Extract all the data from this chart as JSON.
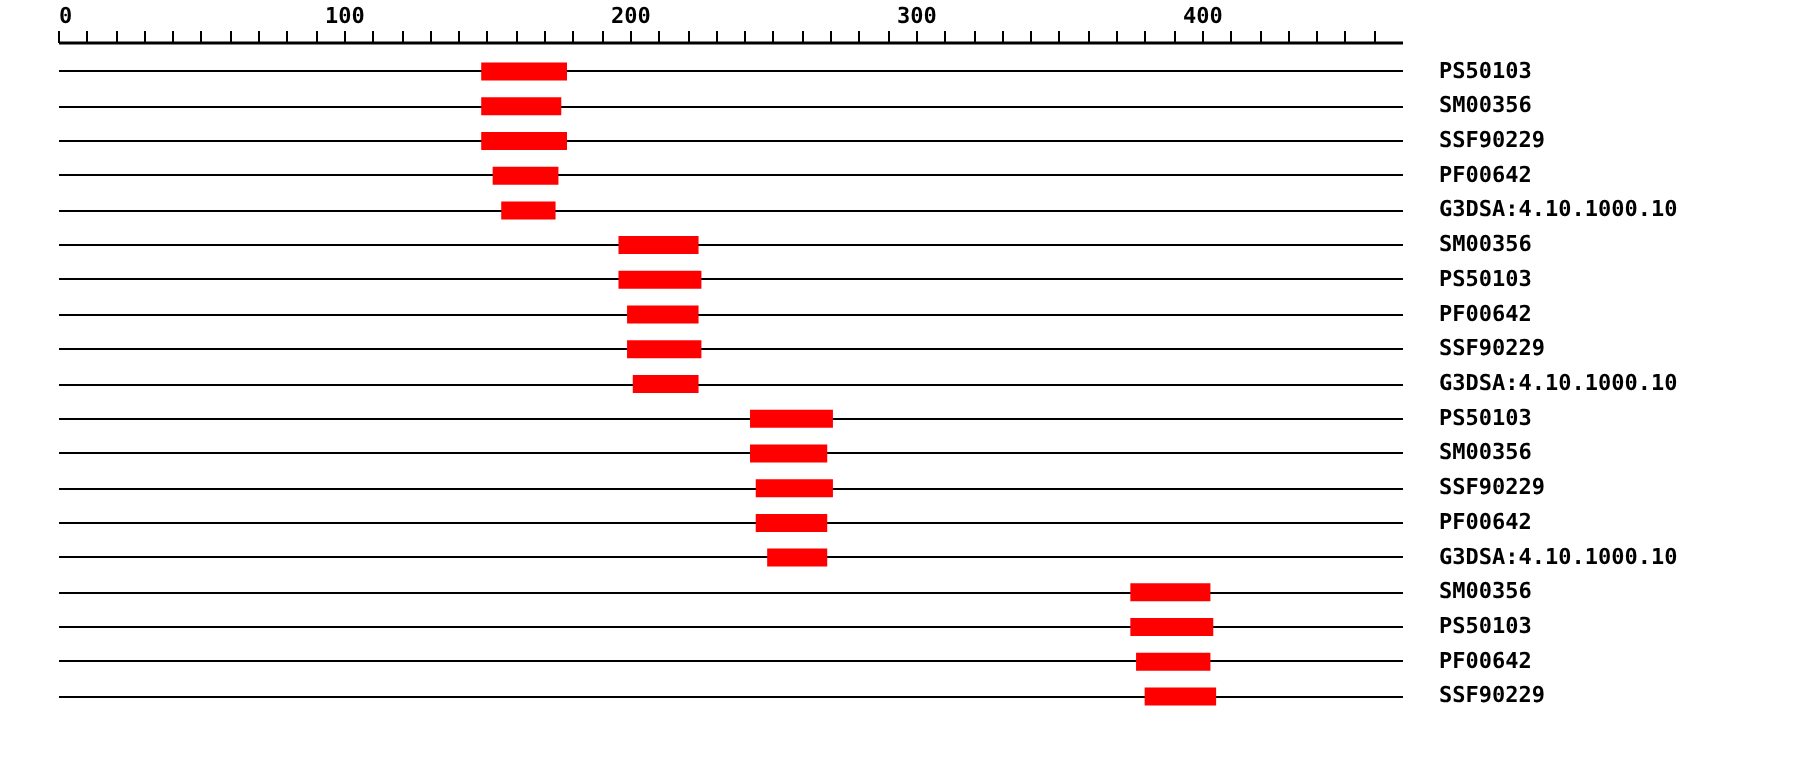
{
  "chart_data": {
    "type": "bar",
    "orientation": "horizontal",
    "categories": [
      "PS50103",
      "SM00356",
      "SSF90229",
      "PF00642",
      "G3DSA:4.10.1000.10",
      "SM00356",
      "PS50103",
      "PF00642",
      "SSF90229",
      "G3DSA:4.10.1000.10",
      "PS50103",
      "SM00356",
      "SSF90229",
      "PF00642",
      "G3DSA:4.10.1000.10",
      "SM00356",
      "PS50103",
      "PF00642",
      "SSF90229"
    ],
    "base": [
      148,
      148,
      148,
      152,
      155,
      196,
      196,
      199,
      199,
      201,
      242,
      242,
      244,
      244,
      248,
      375,
      375,
      377,
      380
    ],
    "values": [
      30,
      28,
      30,
      23,
      19,
      28,
      29,
      25,
      26,
      23,
      29,
      27,
      27,
      25,
      21,
      28,
      29,
      26,
      25
    ],
    "color": "#ff0000",
    "xlim": [
      0,
      470
    ],
    "xticks": [
      0,
      {
        "value": 10,
        "label": null
      },
      {
        "value": 20,
        "label": null
      },
      {
        "value": 30,
        "label": null
      },
      {
        "value": 40,
        "label": null
      },
      {
        "value": 50,
        "label": null
      },
      {
        "value": 60,
        "label": null
      },
      {
        "value": 70,
        "label": null
      },
      {
        "value": 80,
        "label": null
      },
      {
        "value": 90,
        "label": null
      },
      100,
      {
        "value": 110,
        "label": null
      },
      {
        "value": 120,
        "label": null
      },
      {
        "value": 130,
        "label": null
      },
      {
        "value": 140,
        "label": null
      },
      {
        "value": 150,
        "label": null
      },
      {
        "value": 160,
        "label": null
      },
      {
        "value": 170,
        "label": null
      },
      {
        "value": 180,
        "label": null
      },
      {
        "value": 190,
        "label": null
      },
      200,
      {
        "value": 210,
        "label": null
      },
      {
        "value": 220,
        "label": null
      },
      {
        "value": 230,
        "label": null
      },
      {
        "value": 240,
        "label": null
      },
      {
        "value": 250,
        "label": null
      },
      {
        "value": 260,
        "label": null
      },
      {
        "value": 270,
        "label": null
      },
      {
        "value": 280,
        "label": null
      },
      {
        "value": 290,
        "label": null
      },
      300,
      {
        "value": 310,
        "label": null
      },
      {
        "value": 320,
        "label": null
      },
      {
        "value": 330,
        "label": null
      },
      {
        "value": 340,
        "label": null
      },
      {
        "value": 350,
        "label": null
      },
      {
        "value": 360,
        "label": null
      },
      {
        "value": 370,
        "label": null
      },
      {
        "value": 380,
        "label": null
      },
      {
        "value": 390,
        "label": null
      },
      400,
      {
        "value": 410,
        "label": null
      },
      {
        "value": 420,
        "label": null
      },
      {
        "value": 430,
        "label": null
      },
      {
        "value": 440,
        "label": null
      },
      {
        "value": 450,
        "label": null
      },
      {
        "value": 460,
        "label": null
      }
    ],
    "grid": "y"
  }
}
